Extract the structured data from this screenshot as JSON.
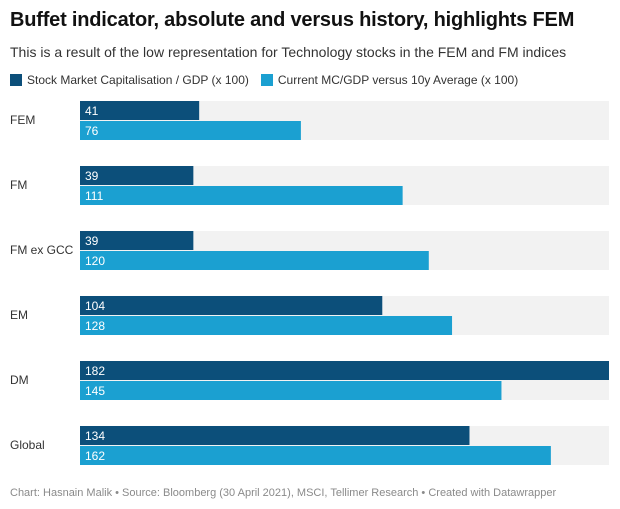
{
  "chart_data": {
    "type": "bar",
    "orientation": "horizontal",
    "title": "Buffet indicator, absolute and versus history, highlights FEM",
    "subtitle": "This is a result of the low representation for Technology stocks in the FEM and FM indices",
    "categories": [
      "FEM",
      "FM",
      "FM ex GCC",
      "EM",
      "DM",
      "Global"
    ],
    "series": [
      {
        "name": "Stock Market Capitalisation / GDP (x 100)",
        "values": [
          41,
          39,
          39,
          104,
          182,
          134
        ],
        "color": "#0c4f7a"
      },
      {
        "name": "Current MC/GDP versus 10y Average (x 100)",
        "values": [
          76,
          111,
          120,
          128,
          145,
          162
        ],
        "color": "#1ba0d1"
      }
    ],
    "xlim": [
      0,
      182
    ],
    "track_color": "#f2f2f2",
    "legend_position": "top-left",
    "grid": false
  },
  "footer": "Chart: Hasnain Malik • Source: Bloomberg (30 April 2021), MSCI, Tellimer Research • Created with Datawrapper"
}
